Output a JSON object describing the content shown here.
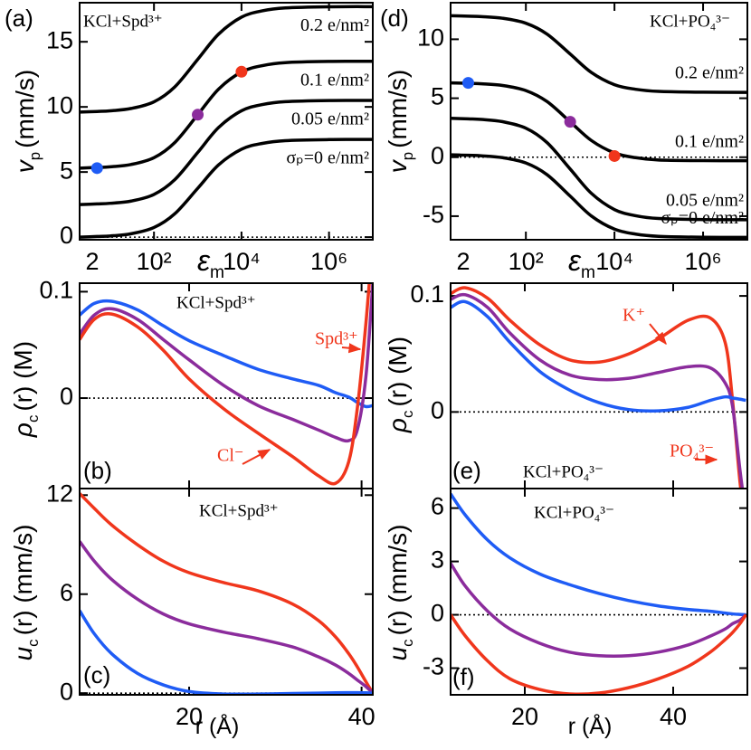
{
  "chart_data": [
    {
      "type": "line",
      "panel_label": "(a)",
      "annotation": "KCl+Spd³⁺",
      "xlabel": [
        "ε",
        "m"
      ],
      "ylabel": [
        "v",
        "p",
        "(mm/s)"
      ],
      "log_x": true,
      "xlim": [
        2,
        10000000
      ],
      "xticks": [
        2,
        {
          "value": 100,
          "label": "10²"
        },
        {
          "value": 10000,
          "label": "10⁴"
        },
        {
          "value": 1000000,
          "label": "10⁶"
        }
      ],
      "show_xtick_labels": true,
      "ylim": [
        -0.2,
        18
      ],
      "yticks": [
        0,
        5,
        10,
        15
      ],
      "hline": 0,
      "x": [
        2,
        5,
        10,
        30,
        100,
        300,
        1000,
        3000,
        10000,
        30000,
        100000,
        1000000,
        10000000
      ],
      "series": [
        {
          "name": "0.2 e/nm²",
          "color": "#000000",
          "values": [
            9.6,
            9.65,
            9.7,
            9.88,
            10.39,
            11.54,
            13.65,
            15.59,
            16.89,
            17.38,
            17.6,
            17.69,
            17.7
          ]
        },
        {
          "name": "0.1 e/nm²",
          "color": "#000000",
          "values": [
            5.3,
            5.35,
            5.4,
            5.58,
            6.1,
            7.27,
            9.4,
            11.37,
            12.68,
            13.17,
            13.4,
            13.49,
            13.5
          ]
        },
        {
          "name": "0.05 e/nm²",
          "color": "#000000",
          "values": [
            2.5,
            2.55,
            2.6,
            2.77,
            3.28,
            4.42,
            6.5,
            8.42,
            9.7,
            10.18,
            10.4,
            10.49,
            10.5
          ]
        },
        {
          "name": "σₚ=0 e/nm²",
          "color": "#000000",
          "values": [
            0,
            0.05,
            0.09,
            0.26,
            0.74,
            1.8,
            3.75,
            5.55,
            6.75,
            7.2,
            7.41,
            7.49,
            7.5
          ]
        }
      ],
      "points": {
        "x": [
          5,
          1000,
          10000
        ],
        "values": [
          5.3,
          9.4,
          12.7
        ],
        "colors": [
          "#1f5cf5",
          "#8b2c9c",
          "#f0361c"
        ]
      }
    },
    {
      "type": "line",
      "panel_label": "(b)",
      "annotation": "KCl+Spd³⁺",
      "ylabel": [
        "ρ",
        "c",
        "(r) (M)"
      ],
      "log_x": false,
      "xlim": [
        7.3,
        41.3
      ],
      "xticks": [
        20,
        40
      ],
      "show_xtick_labels": false,
      "ylim": [
        -0.085,
        0.108
      ],
      "yticks": [
        0,
        0.1
      ],
      "hline": 0,
      "x": [
        7.3,
        9,
        11,
        14,
        17,
        20,
        24,
        28,
        32,
        35,
        37,
        38.5,
        39.5,
        40.5,
        41.3
      ],
      "series": [
        {
          "color": "#1f5cf5",
          "values": [
            0.078,
            0.089,
            0.091,
            0.083,
            0.068,
            0.054,
            0.04,
            0.027,
            0.018,
            0.012,
            0.005,
            0.001,
            -0.004,
            -0.008,
            -0.007
          ]
        },
        {
          "color": "#8b2c9c",
          "values": [
            0.06,
            0.078,
            0.084,
            0.074,
            0.055,
            0.036,
            0.012,
            -0.007,
            -0.02,
            -0.03,
            -0.037,
            -0.04,
            -0.03,
            0.02,
            0.108
          ]
        },
        {
          "color": "#f0361c",
          "values": [
            0.055,
            0.074,
            0.079,
            0.067,
            0.045,
            0.018,
            -0.01,
            -0.033,
            -0.055,
            -0.073,
            -0.08,
            -0.06,
            -0.01,
            0.07,
            0.15
          ]
        }
      ],
      "labels": [
        {
          "text": "Spd³⁺",
          "color": "#f0361c"
        },
        {
          "text": "Cl⁻",
          "color": "#f0361c"
        }
      ]
    },
    {
      "type": "line",
      "panel_label": "(c)",
      "annotation": "KCl+Spd³⁺",
      "ylabel": [
        "u",
        "c",
        "(r) (mm/s)"
      ],
      "xlabel": [
        "r (Å)"
      ],
      "log_x": false,
      "xlim": [
        7.3,
        41.3
      ],
      "xticks": [
        20,
        40
      ],
      "show_xtick_labels": true,
      "ylim": [
        -0.1,
        12.4
      ],
      "yticks": [
        0,
        6,
        12
      ],
      "hline": 0,
      "x": [
        7.3,
        9,
        11,
        14,
        17,
        20,
        24,
        28,
        32,
        35,
        37,
        38.5,
        39.5,
        40.5,
        41.3
      ],
      "series": [
        {
          "color": "#f0361c",
          "values": [
            12.1,
            11.2,
            10.2,
            9.0,
            8.0,
            7.3,
            6.7,
            6.2,
            5.4,
            4.4,
            3.4,
            2.4,
            1.6,
            0.7,
            0
          ]
        },
        {
          "color": "#8b2c9c",
          "values": [
            9.2,
            8.0,
            6.9,
            5.7,
            4.8,
            4.2,
            3.7,
            3.3,
            2.8,
            2.2,
            1.7,
            1.2,
            0.8,
            0.4,
            0
          ]
        },
        {
          "color": "#1f5cf5",
          "values": [
            5.0,
            3.6,
            2.4,
            1.2,
            0.5,
            0.1,
            -0.05,
            -0.05,
            -0.02,
            0,
            0.02,
            0.03,
            0.03,
            0.02,
            0
          ]
        }
      ]
    },
    {
      "type": "line",
      "panel_label": "(d)",
      "annotation": "KCl+PO₄³⁻",
      "xlabel": [
        "ε",
        "m"
      ],
      "ylabel": [
        "v",
        "p",
        "(mm/s)"
      ],
      "log_x": true,
      "xlim": [
        2,
        10000000
      ],
      "xticks": [
        2,
        {
          "value": 100,
          "label": "10²"
        },
        {
          "value": 10000,
          "label": "10⁴"
        },
        {
          "value": 1000000,
          "label": "10⁶"
        }
      ],
      "show_xtick_labels": true,
      "ylim": [
        -7,
        13.1
      ],
      "yticks": [
        -5,
        0,
        5,
        10
      ],
      "hline": 0,
      "x": [
        2,
        5,
        10,
        30,
        100,
        300,
        1000,
        3000,
        10000,
        30000,
        100000,
        1000000,
        10000000
      ],
      "series": [
        {
          "name": "0.2 e/nm²",
          "color": "#000000",
          "values": [
            12,
            11.96,
            11.92,
            11.78,
            11.36,
            10.44,
            8.75,
            7.19,
            6.15,
            5.76,
            5.58,
            5.51,
            5.5
          ]
        },
        {
          "name": "0.1 e/nm²",
          "color": "#000000",
          "values": [
            6.3,
            6.26,
            6.22,
            6.08,
            5.65,
            4.72,
            3.0,
            1.42,
            0.36,
            -0.04,
            -0.24,
            -0.29,
            -0.3
          ]
        },
        {
          "name": "0.05 e/nm²",
          "color": "#000000",
          "values": [
            3.3,
            3.25,
            3.2,
            3.01,
            2.46,
            1.24,
            -1.0,
            -3.06,
            -4.44,
            -4.96,
            -5.2,
            -5.29,
            -5.3
          ]
        },
        {
          "name": "σₚ=0 e/nm²",
          "color": "#000000",
          "values": [
            0.2,
            0.16,
            0.12,
            -0.04,
            -0.49,
            -1.48,
            -3.3,
            -4.98,
            -6.1,
            -6.52,
            -6.71,
            -6.79,
            -6.8
          ]
        }
      ],
      "points": {
        "x": [
          5,
          1000,
          10000
        ],
        "values": [
          6.3,
          3.0,
          0.1
        ],
        "colors": [
          "#1f5cf5",
          "#8b2c9c",
          "#f0361c"
        ]
      }
    },
    {
      "type": "line",
      "panel_label": "(e)",
      "annotation": "KCl+PO₄³⁻",
      "ylabel": [
        "ρ",
        "c",
        "(r) (M)"
      ],
      "log_x": false,
      "xlim": [
        10,
        50
      ],
      "xticks": [
        20,
        40
      ],
      "show_xtick_labels": false,
      "ylim": [
        -0.066,
        0.111
      ],
      "yticks": [
        0,
        0.1
      ],
      "hline": 0,
      "x": [
        10,
        12,
        15,
        18,
        22,
        26,
        30,
        34,
        38,
        42,
        45,
        47,
        48,
        49,
        49.8
      ],
      "series": [
        {
          "color": "#f0361c",
          "values": [
            0.102,
            0.107,
            0.098,
            0.079,
            0.058,
            0.045,
            0.043,
            0.05,
            0.063,
            0.079,
            0.081,
            0.06,
            0.01,
            -0.06,
            -0.1
          ]
        },
        {
          "color": "#8b2c9c",
          "values": [
            0.097,
            0.101,
            0.09,
            0.068,
            0.045,
            0.032,
            0.028,
            0.029,
            0.034,
            0.039,
            0.038,
            0.025,
            0.005,
            -0.05,
            -0.09
          ]
        },
        {
          "color": "#1f5cf5",
          "values": [
            0.09,
            0.095,
            0.082,
            0.06,
            0.035,
            0.019,
            0.008,
            0.002,
            0.001,
            0.004,
            0.01,
            0.013,
            0.012,
            0.011,
            0.01
          ]
        }
      ],
      "labels": [
        {
          "text": "K⁺",
          "color": "#f0361c"
        },
        {
          "text": "PO₄³⁻",
          "color": "#f0361c"
        }
      ]
    },
    {
      "type": "line",
      "panel_label": "(f)",
      "annotation": "KCl+PO₄³⁻",
      "ylabel": [
        "u",
        "c",
        "(r) (mm/s)"
      ],
      "xlabel": [
        "r (Å)"
      ],
      "log_x": false,
      "xlim": [
        10,
        50
      ],
      "xticks": [
        20,
        40
      ],
      "show_xtick_labels": true,
      "ylim": [
        -4.5,
        7.1
      ],
      "yticks": [
        -3,
        0,
        3,
        6
      ],
      "hline": 0,
      "x": [
        10,
        12,
        15,
        18,
        22,
        26,
        30,
        34,
        38,
        42,
        45,
        47,
        48,
        49,
        49.8
      ],
      "series": [
        {
          "color": "#1f5cf5",
          "values": [
            6.8,
            5.6,
            4.2,
            3.2,
            2.3,
            1.7,
            1.2,
            0.8,
            0.5,
            0.3,
            0.2,
            0.1,
            0.05,
            0.02,
            0
          ]
        },
        {
          "color": "#8b2c9c",
          "values": [
            2.9,
            1.6,
            0.2,
            -0.8,
            -1.6,
            -2.1,
            -2.3,
            -2.3,
            -2.1,
            -1.7,
            -1.2,
            -0.8,
            -0.5,
            -0.3,
            0
          ]
        },
        {
          "color": "#f0361c",
          "values": [
            0,
            -1.2,
            -2.6,
            -3.6,
            -4.2,
            -4.45,
            -4.4,
            -4.1,
            -3.6,
            -2.9,
            -2.1,
            -1.4,
            -1.0,
            -0.5,
            0
          ]
        }
      ]
    }
  ]
}
